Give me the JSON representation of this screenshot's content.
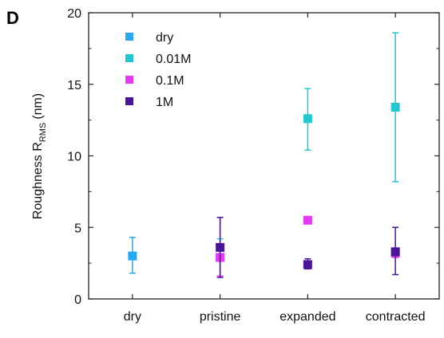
{
  "chart_data": {
    "type": "scatter",
    "panel_label": "D",
    "categories": [
      "dry",
      "pristine",
      "expanded",
      "contracted"
    ],
    "ylabel": "Roughness R",
    "ylabel_subscript": "RMS",
    "ylabel_unit": "(nm)",
    "ylim": [
      0,
      20
    ],
    "yticks": [
      0,
      5,
      10,
      15,
      20
    ],
    "grid": false,
    "legend_position": "top-left",
    "series": [
      {
        "name": "dry",
        "color": "#29a8f0",
        "points": [
          {
            "category": "dry",
            "y": 3.0,
            "err_low": 1.8,
            "err_high": 4.3
          }
        ]
      },
      {
        "name": "0.01M",
        "color": "#26c6cf",
        "points": [
          {
            "category": "pristine",
            "y": 2.9,
            "err_low": 1.6,
            "err_high": 4.2
          },
          {
            "category": "expanded",
            "y": 12.6,
            "err_low": 10.4,
            "err_high": 14.7
          },
          {
            "category": "contracted",
            "y": 13.4,
            "err_low": 8.2,
            "err_high": 18.6
          }
        ]
      },
      {
        "name": "0.1M",
        "color": "#e23bf0",
        "points": [
          {
            "category": "pristine",
            "y": 2.9,
            "err_low": 1.6,
            "err_high": 5.7
          },
          {
            "category": "expanded",
            "y": 5.5,
            "err_low": 5.4,
            "err_high": 5.6
          },
          {
            "category": "contracted",
            "y": 3.2,
            "err_low": 2.9,
            "err_high": 3.5
          }
        ]
      },
      {
        "name": "1M",
        "color": "#4b1696",
        "points": [
          {
            "category": "pristine",
            "y": 3.6,
            "err_low": 1.5,
            "err_high": 5.7
          },
          {
            "category": "expanded",
            "y": 2.4,
            "err_low": 2.1,
            "err_high": 2.8
          },
          {
            "category": "contracted",
            "y": 3.3,
            "err_low": 1.7,
            "err_high": 5.0
          }
        ]
      }
    ]
  }
}
